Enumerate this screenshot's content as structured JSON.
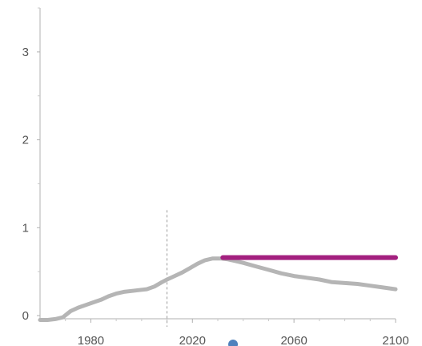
{
  "chart_data": {
    "type": "line",
    "xlim": [
      1960,
      2100
    ],
    "ylim": [
      0,
      3.5
    ],
    "x_ticks": [
      {
        "value": 1980,
        "label": "1980"
      },
      {
        "value": 2020,
        "label": "2020"
      },
      {
        "value": 2060,
        "label": "2060"
      },
      {
        "value": 2100,
        "label": "2100"
      }
    ],
    "y_ticks": [
      {
        "value": 0,
        "label": "0"
      },
      {
        "value": 1,
        "label": "1"
      },
      {
        "value": 2,
        "label": "2"
      },
      {
        "value": 3,
        "label": "3"
      }
    ],
    "y_minor_ticks": [
      0.5,
      1.5,
      2.5,
      3.5
    ],
    "reference_line": {
      "x": 2010,
      "y_top": 1.2
    },
    "marker_point": {
      "x": 2036
    },
    "grid": false,
    "legend": "none",
    "series": [
      {
        "color": "#b5b5b5",
        "x": [
          1960,
          1963,
          1966,
          1969,
          1972,
          1975,
          1978,
          1981,
          1984,
          1987,
          1990,
          1993,
          1996,
          1999,
          2002,
          2005,
          2008,
          2010,
          2013,
          2016,
          2019,
          2022,
          2025,
          2028,
          2031,
          2034,
          2037,
          2040,
          2045,
          2050,
          2055,
          2060,
          2065,
          2070,
          2075,
          2080,
          2085,
          2090,
          2095,
          2100
        ],
        "values": [
          -0.05,
          -0.05,
          -0.04,
          -0.02,
          0.05,
          0.09,
          0.12,
          0.15,
          0.18,
          0.22,
          0.25,
          0.27,
          0.28,
          0.29,
          0.3,
          0.33,
          0.38,
          0.41,
          0.45,
          0.49,
          0.54,
          0.59,
          0.63,
          0.65,
          0.65,
          0.64,
          0.62,
          0.6,
          0.56,
          0.52,
          0.48,
          0.45,
          0.43,
          0.41,
          0.38,
          0.37,
          0.36,
          0.34,
          0.32,
          0.3
        ]
      },
      {
        "color": "#a3207f",
        "x": [
          2032,
          2100
        ],
        "values": [
          0.66,
          0.66
        ]
      }
    ]
  }
}
